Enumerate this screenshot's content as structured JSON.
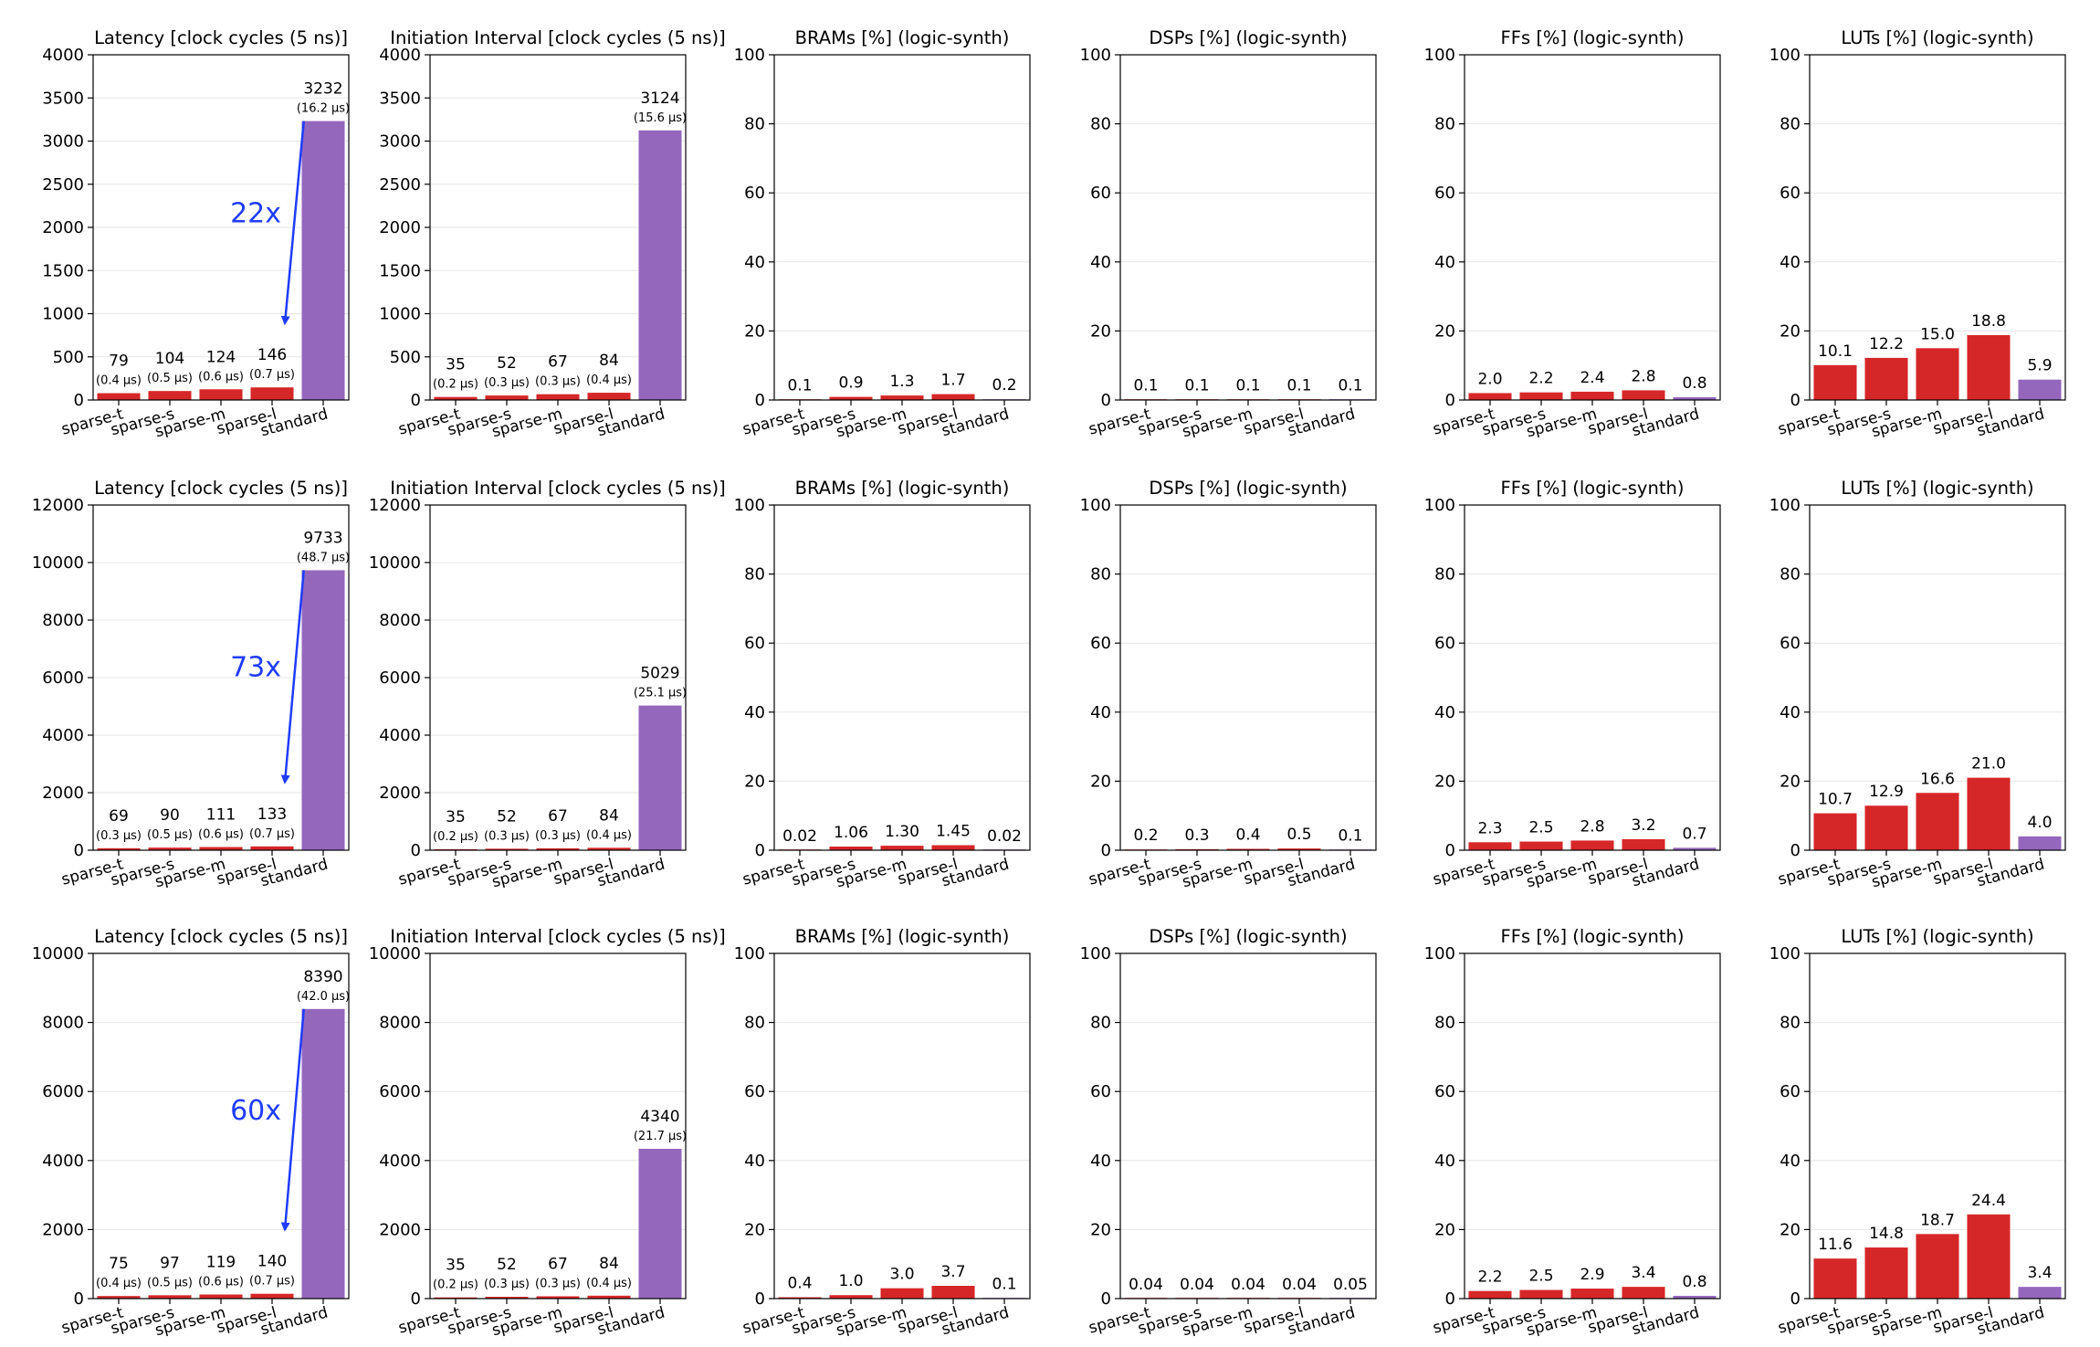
{
  "chart_data": [
    {
      "type": "bar",
      "row": 0,
      "title": "Latency [clock cycles (5 ns)]",
      "categories": [
        "sparse-t",
        "sparse-s",
        "sparse-m",
        "sparse-l",
        "standard"
      ],
      "values": [
        79,
        104,
        124,
        146,
        3232
      ],
      "labels": [
        "79",
        "104",
        "124",
        "146",
        "3232"
      ],
      "sublabels": [
        "(0.4 μs)",
        "(0.5 μs)",
        "(0.6 μs)",
        "(0.7 μs)",
        "(16.2 μs)"
      ],
      "ylim": [
        0,
        4000
      ],
      "yticks": [
        0,
        500,
        1000,
        1500,
        2000,
        2500,
        3000,
        3500,
        4000
      ],
      "colors": [
        "#d62728",
        "#d62728",
        "#d62728",
        "#d62728",
        "#9467bd"
      ],
      "speedup": "22x"
    },
    {
      "type": "bar",
      "row": 0,
      "title": "Initiation Interval [clock cycles (5 ns)]",
      "categories": [
        "sparse-t",
        "sparse-s",
        "sparse-m",
        "sparse-l",
        "standard"
      ],
      "values": [
        35,
        52,
        67,
        84,
        3124
      ],
      "labels": [
        "35",
        "52",
        "67",
        "84",
        "3124"
      ],
      "sublabels": [
        "(0.2 μs)",
        "(0.3 μs)",
        "(0.3 μs)",
        "(0.4 μs)",
        "(15.6 μs)"
      ],
      "ylim": [
        0,
        4000
      ],
      "yticks": [
        0,
        500,
        1000,
        1500,
        2000,
        2500,
        3000,
        3500,
        4000
      ],
      "colors": [
        "#d62728",
        "#d62728",
        "#d62728",
        "#d62728",
        "#9467bd"
      ]
    },
    {
      "type": "bar",
      "row": 0,
      "title": "BRAMs [%] (logic-synth)",
      "categories": [
        "sparse-t",
        "sparse-s",
        "sparse-m",
        "sparse-l",
        "standard"
      ],
      "values": [
        0.1,
        0.9,
        1.3,
        1.7,
        0.2
      ],
      "labels": [
        "0.1",
        "0.9",
        "1.3",
        "1.7",
        "0.2"
      ],
      "ylim": [
        0,
        100
      ],
      "yticks": [
        0,
        20,
        40,
        60,
        80,
        100
      ],
      "colors": [
        "#d62728",
        "#d62728",
        "#d62728",
        "#d62728",
        "#9467bd"
      ]
    },
    {
      "type": "bar",
      "row": 0,
      "title": "DSPs [%] (logic-synth)",
      "categories": [
        "sparse-t",
        "sparse-s",
        "sparse-m",
        "sparse-l",
        "standard"
      ],
      "values": [
        0.1,
        0.1,
        0.1,
        0.1,
        0.1
      ],
      "labels": [
        "0.1",
        "0.1",
        "0.1",
        "0.1",
        "0.1"
      ],
      "ylim": [
        0,
        100
      ],
      "yticks": [
        0,
        20,
        40,
        60,
        80,
        100
      ],
      "colors": [
        "#d62728",
        "#d62728",
        "#d62728",
        "#d62728",
        "#9467bd"
      ]
    },
    {
      "type": "bar",
      "row": 0,
      "title": "FFs [%] (logic-synth)",
      "categories": [
        "sparse-t",
        "sparse-s",
        "sparse-m",
        "sparse-l",
        "standard"
      ],
      "values": [
        2.0,
        2.2,
        2.4,
        2.8,
        0.8
      ],
      "labels": [
        "2.0",
        "2.2",
        "2.4",
        "2.8",
        "0.8"
      ],
      "ylim": [
        0,
        100
      ],
      "yticks": [
        0,
        20,
        40,
        60,
        80,
        100
      ],
      "colors": [
        "#d62728",
        "#d62728",
        "#d62728",
        "#d62728",
        "#9467bd"
      ]
    },
    {
      "type": "bar",
      "row": 0,
      "title": "LUTs [%] (logic-synth)",
      "categories": [
        "sparse-t",
        "sparse-s",
        "sparse-m",
        "sparse-l",
        "standard"
      ],
      "values": [
        10.1,
        12.2,
        15.0,
        18.8,
        5.9
      ],
      "labels": [
        "10.1",
        "12.2",
        "15.0",
        "18.8",
        "5.9"
      ],
      "ylim": [
        0,
        100
      ],
      "yticks": [
        0,
        20,
        40,
        60,
        80,
        100
      ],
      "colors": [
        "#d62728",
        "#d62728",
        "#d62728",
        "#d62728",
        "#9467bd"
      ]
    },
    {
      "type": "bar",
      "row": 1,
      "title": "Latency [clock cycles (5 ns)]",
      "categories": [
        "sparse-t",
        "sparse-s",
        "sparse-m",
        "sparse-l",
        "standard"
      ],
      "values": [
        69,
        90,
        111,
        133,
        9733
      ],
      "labels": [
        "69",
        "90",
        "111",
        "133",
        "9733"
      ],
      "sublabels": [
        "(0.3 μs)",
        "(0.5 μs)",
        "(0.6 μs)",
        "(0.7 μs)",
        "(48.7 μs)"
      ],
      "ylim": [
        0,
        12000
      ],
      "yticks": [
        0,
        2000,
        4000,
        6000,
        8000,
        10000,
        12000
      ],
      "colors": [
        "#d62728",
        "#d62728",
        "#d62728",
        "#d62728",
        "#9467bd"
      ],
      "speedup": "73x"
    },
    {
      "type": "bar",
      "row": 1,
      "title": "Initiation Interval [clock cycles (5 ns)]",
      "categories": [
        "sparse-t",
        "sparse-s",
        "sparse-m",
        "sparse-l",
        "standard"
      ],
      "values": [
        35,
        52,
        67,
        84,
        5029
      ],
      "labels": [
        "35",
        "52",
        "67",
        "84",
        "5029"
      ],
      "sublabels": [
        "(0.2 μs)",
        "(0.3 μs)",
        "(0.3 μs)",
        "(0.4 μs)",
        "(25.1 μs)"
      ],
      "ylim": [
        0,
        12000
      ],
      "yticks": [
        0,
        2000,
        4000,
        6000,
        8000,
        10000,
        12000
      ],
      "colors": [
        "#d62728",
        "#d62728",
        "#d62728",
        "#d62728",
        "#9467bd"
      ]
    },
    {
      "type": "bar",
      "row": 1,
      "title": "BRAMs [%] (logic-synth)",
      "categories": [
        "sparse-t",
        "sparse-s",
        "sparse-m",
        "sparse-l",
        "standard"
      ],
      "values": [
        0.02,
        1.06,
        1.3,
        1.45,
        0.02
      ],
      "labels": [
        "0.02",
        "1.06",
        "1.30",
        "1.45",
        "0.02"
      ],
      "ylim": [
        0,
        100
      ],
      "yticks": [
        0,
        20,
        40,
        60,
        80,
        100
      ],
      "colors": [
        "#d62728",
        "#d62728",
        "#d62728",
        "#d62728",
        "#9467bd"
      ]
    },
    {
      "type": "bar",
      "row": 1,
      "title": "DSPs [%] (logic-synth)",
      "categories": [
        "sparse-t",
        "sparse-s",
        "sparse-m",
        "sparse-l",
        "standard"
      ],
      "values": [
        0.2,
        0.3,
        0.4,
        0.5,
        0.1
      ],
      "labels": [
        "0.2",
        "0.3",
        "0.4",
        "0.5",
        "0.1"
      ],
      "ylim": [
        0,
        100
      ],
      "yticks": [
        0,
        20,
        40,
        60,
        80,
        100
      ],
      "colors": [
        "#d62728",
        "#d62728",
        "#d62728",
        "#d62728",
        "#9467bd"
      ]
    },
    {
      "type": "bar",
      "row": 1,
      "title": "FFs [%] (logic-synth)",
      "categories": [
        "sparse-t",
        "sparse-s",
        "sparse-m",
        "sparse-l",
        "standard"
      ],
      "values": [
        2.3,
        2.5,
        2.8,
        3.2,
        0.7
      ],
      "labels": [
        "2.3",
        "2.5",
        "2.8",
        "3.2",
        "0.7"
      ],
      "ylim": [
        0,
        100
      ],
      "yticks": [
        0,
        20,
        40,
        60,
        80,
        100
      ],
      "colors": [
        "#d62728",
        "#d62728",
        "#d62728",
        "#d62728",
        "#9467bd"
      ]
    },
    {
      "type": "bar",
      "row": 1,
      "title": "LUTs [%] (logic-synth)",
      "categories": [
        "sparse-t",
        "sparse-s",
        "sparse-m",
        "sparse-l",
        "standard"
      ],
      "values": [
        10.7,
        12.9,
        16.6,
        21.0,
        4.0
      ],
      "labels": [
        "10.7",
        "12.9",
        "16.6",
        "21.0",
        "4.0"
      ],
      "ylim": [
        0,
        100
      ],
      "yticks": [
        0,
        20,
        40,
        60,
        80,
        100
      ],
      "colors": [
        "#d62728",
        "#d62728",
        "#d62728",
        "#d62728",
        "#9467bd"
      ]
    },
    {
      "type": "bar",
      "row": 2,
      "title": "Latency [clock cycles (5 ns)]",
      "categories": [
        "sparse-t",
        "sparse-s",
        "sparse-m",
        "sparse-l",
        "standard"
      ],
      "values": [
        75,
        97,
        119,
        140,
        8390
      ],
      "labels": [
        "75",
        "97",
        "119",
        "140",
        "8390"
      ],
      "sublabels": [
        "(0.4 μs)",
        "(0.5 μs)",
        "(0.6 μs)",
        "(0.7 μs)",
        "(42.0 μs)"
      ],
      "ylim": [
        0,
        10000
      ],
      "yticks": [
        0,
        2000,
        4000,
        6000,
        8000,
        10000
      ],
      "colors": [
        "#d62728",
        "#d62728",
        "#d62728",
        "#d62728",
        "#9467bd"
      ],
      "speedup": "60x"
    },
    {
      "type": "bar",
      "row": 2,
      "title": "Initiation Interval [clock cycles (5 ns)]",
      "categories": [
        "sparse-t",
        "sparse-s",
        "sparse-m",
        "sparse-l",
        "standard"
      ],
      "values": [
        35,
        52,
        67,
        84,
        4340
      ],
      "labels": [
        "35",
        "52",
        "67",
        "84",
        "4340"
      ],
      "sublabels": [
        "(0.2 μs)",
        "(0.3 μs)",
        "(0.3 μs)",
        "(0.4 μs)",
        "(21.7 μs)"
      ],
      "ylim": [
        0,
        10000
      ],
      "yticks": [
        0,
        2000,
        4000,
        6000,
        8000,
        10000
      ],
      "colors": [
        "#d62728",
        "#d62728",
        "#d62728",
        "#d62728",
        "#9467bd"
      ]
    },
    {
      "type": "bar",
      "row": 2,
      "title": "BRAMs [%] (logic-synth)",
      "categories": [
        "sparse-t",
        "sparse-s",
        "sparse-m",
        "sparse-l",
        "standard"
      ],
      "values": [
        0.4,
        1.0,
        3.0,
        3.7,
        0.1
      ],
      "labels": [
        "0.4",
        "1.0",
        "3.0",
        "3.7",
        "0.1"
      ],
      "ylim": [
        0,
        100
      ],
      "yticks": [
        0,
        20,
        40,
        60,
        80,
        100
      ],
      "colors": [
        "#d62728",
        "#d62728",
        "#d62728",
        "#d62728",
        "#9467bd"
      ]
    },
    {
      "type": "bar",
      "row": 2,
      "title": "DSPs [%] (logic-synth)",
      "categories": [
        "sparse-t",
        "sparse-s",
        "sparse-m",
        "sparse-l",
        "standard"
      ],
      "values": [
        0.04,
        0.04,
        0.04,
        0.04,
        0.05
      ],
      "labels": [
        "0.04",
        "0.04",
        "0.04",
        "0.04",
        "0.05"
      ],
      "ylim": [
        0,
        100
      ],
      "yticks": [
        0,
        20,
        40,
        60,
        80,
        100
      ],
      "colors": [
        "#d62728",
        "#d62728",
        "#d62728",
        "#d62728",
        "#9467bd"
      ]
    },
    {
      "type": "bar",
      "row": 2,
      "title": "FFs [%] (logic-synth)",
      "categories": [
        "sparse-t",
        "sparse-s",
        "sparse-m",
        "sparse-l",
        "standard"
      ],
      "values": [
        2.2,
        2.5,
        2.9,
        3.4,
        0.8
      ],
      "labels": [
        "2.2",
        "2.5",
        "2.9",
        "3.4",
        "0.8"
      ],
      "ylim": [
        0,
        100
      ],
      "yticks": [
        0,
        20,
        40,
        60,
        80,
        100
      ],
      "colors": [
        "#d62728",
        "#d62728",
        "#d62728",
        "#d62728",
        "#9467bd"
      ]
    },
    {
      "type": "bar",
      "row": 2,
      "title": "LUTs [%] (logic-synth)",
      "categories": [
        "sparse-t",
        "sparse-s",
        "sparse-m",
        "sparse-l",
        "standard"
      ],
      "values": [
        11.6,
        14.8,
        18.7,
        24.4,
        3.4
      ],
      "labels": [
        "11.6",
        "14.8",
        "18.7",
        "24.4",
        "3.4"
      ],
      "ylim": [
        0,
        100
      ],
      "yticks": [
        0,
        20,
        40,
        60,
        80,
        100
      ],
      "colors": [
        "#d62728",
        "#d62728",
        "#d62728",
        "#d62728",
        "#9467bd"
      ]
    }
  ],
  "colors": {
    "sparse": "#d62728",
    "standard": "#9467bd",
    "arrow": "#1f3cff",
    "grid": "#e6e6e6"
  }
}
